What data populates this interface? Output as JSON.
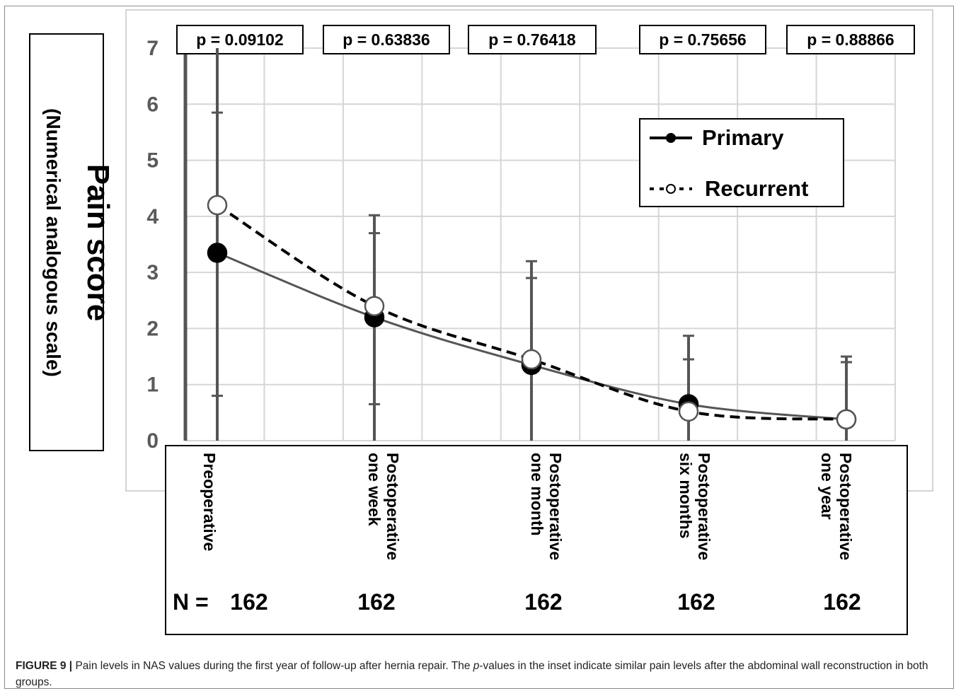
{
  "chart_data": {
    "type": "line",
    "ylabel": "Pain score",
    "ylabel_sub": "(Numerical analogous scale)",
    "ylim": [
      0,
      7
    ],
    "yticks": [
      "0",
      "1",
      "2",
      "3",
      "4",
      "5",
      "6",
      "7"
    ],
    "categories": [
      "Preoperative",
      "Postoperative one week",
      "Postoperative one month",
      "Postoperative six months",
      "Postoperative one year"
    ],
    "category_lines": [
      [
        "Preoperative"
      ],
      [
        "Postoperative",
        "one week"
      ],
      [
        "Postoperative",
        "one month"
      ],
      [
        "Postoperative",
        "six months"
      ],
      [
        "Postoperative",
        "one year"
      ]
    ],
    "n_label": "N =",
    "n_values": [
      "162",
      "162",
      "162",
      "162",
      "162"
    ],
    "p_values": [
      "p = 0.09102",
      "p = 0.63836",
      "p = 0.76418",
      "p = 0.75656",
      "p = 0.88866"
    ],
    "grid": true,
    "legend_position": "top-right",
    "series": [
      {
        "name": "Primary",
        "style": "solid",
        "marker": "filled",
        "color": "#555555",
        "values": [
          3.35,
          2.2,
          1.35,
          0.65,
          0.38
        ],
        "error_low": [
          0.8,
          0.65,
          0.0,
          0.0,
          0.0
        ],
        "error_high": [
          5.85,
          3.7,
          2.9,
          1.45,
          1.4
        ]
      },
      {
        "name": "Recurrent",
        "style": "dashed",
        "marker": "open",
        "color": "#000000",
        "values": [
          4.2,
          2.4,
          1.45,
          0.52,
          0.38
        ],
        "error_low": [
          0.0,
          0.0,
          0.0,
          0.0,
          0.0
        ],
        "error_high": [
          7.0,
          4.02,
          3.2,
          1.87,
          1.5
        ]
      }
    ]
  },
  "caption": {
    "label": "FIGURE 9 |",
    "text_1": " Pain levels in NAS values during the first year of follow-up after hernia repair. The ",
    "italic": "p",
    "text_2": "-values in the inset indicate similar pain levels after the abdominal wall reconstruction in both groups."
  }
}
